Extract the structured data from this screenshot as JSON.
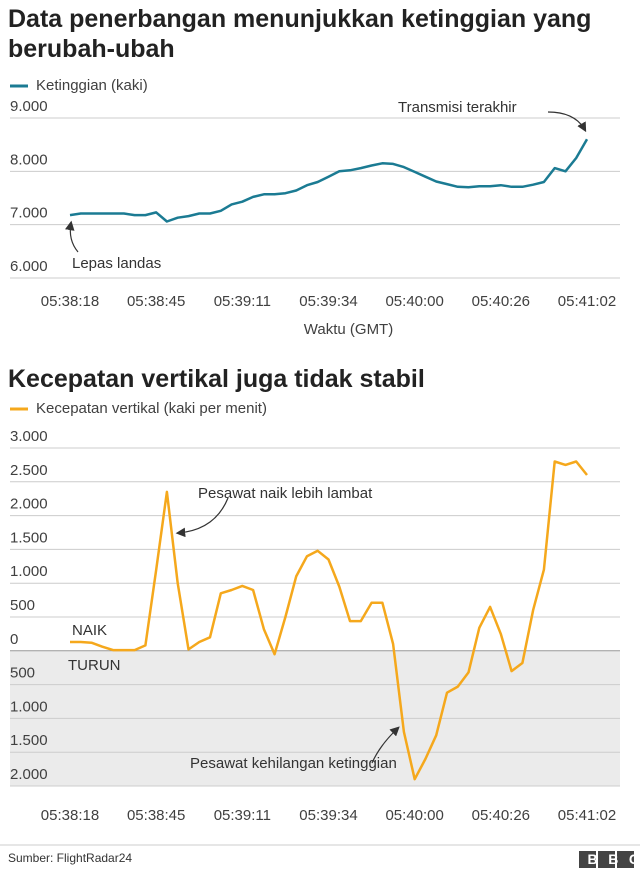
{
  "chart_data": [
    {
      "type": "line",
      "title": "Data penerbangan menunjukkan ketinggian yang berubah-ubah",
      "x_label": "Waktu (GMT)",
      "categories": [
        "05:38:18",
        null,
        null,
        null,
        null,
        null,
        null,
        null,
        "05:38:45",
        null,
        null,
        null,
        null,
        null,
        null,
        null,
        "05:39:11",
        null,
        null,
        null,
        null,
        null,
        null,
        null,
        "05:39:34",
        null,
        null,
        null,
        null,
        null,
        null,
        null,
        "05:40:00",
        null,
        null,
        null,
        null,
        null,
        null,
        null,
        "05:40:26",
        null,
        null,
        null,
        null,
        null,
        null,
        null,
        "05:41:02"
      ],
      "series": [
        {
          "name": "Ketinggian (kaki)",
          "color": "#1b7b93",
          "values": [
            7180,
            7210,
            7210,
            7210,
            7210,
            7210,
            7180,
            7180,
            7230,
            7060,
            7130,
            7160,
            7210,
            7210,
            7260,
            7380,
            7430,
            7520,
            7570,
            7570,
            7590,
            7640,
            7740,
            7800,
            7900,
            8000,
            8020,
            8060,
            8110,
            8150,
            8140,
            8080,
            7990,
            7900,
            7810,
            7760,
            7710,
            7700,
            7720,
            7720,
            7740,
            7710,
            7710,
            7750,
            7800,
            8060,
            8000,
            8250,
            8600
          ]
        }
      ],
      "ylim": [
        6000,
        9000
      ],
      "yticks": [
        {
          "value": 6000,
          "label": "6.000"
        },
        {
          "value": 7000,
          "label": "7.000"
        },
        {
          "value": 8000,
          "label": "8.000"
        },
        {
          "value": 9000,
          "label": "9.000"
        }
      ],
      "grid": true,
      "annotations": [
        "Transmisi terakhir",
        "Lepas landas"
      ]
    },
    {
      "type": "line",
      "title": "Kecepatan vertikal juga tidak stabil",
      "categories": [
        "05:38:18",
        null,
        null,
        null,
        null,
        null,
        null,
        null,
        "05:38:45",
        null,
        null,
        null,
        null,
        null,
        null,
        null,
        "05:39:11",
        null,
        null,
        null,
        null,
        null,
        null,
        null,
        "05:39:34",
        null,
        null,
        null,
        null,
        null,
        null,
        null,
        "05:40:00",
        null,
        null,
        null,
        null,
        null,
        null,
        null,
        "05:40:26",
        null,
        null,
        null,
        null,
        null,
        null,
        null,
        "05:41:02"
      ],
      "series": [
        {
          "name": "Kecepatan vertikal (kaki per menit)",
          "color": "#f5a81c",
          "values": [
            130,
            130,
            120,
            60,
            10,
            10,
            10,
            80,
            1200,
            2350,
            1000,
            20,
            130,
            200,
            850,
            900,
            960,
            900,
            320,
            -50,
            500,
            1100,
            1400,
            1480,
            1350,
            950,
            440,
            440,
            710,
            710,
            100,
            -1200,
            -1900,
            -1600,
            -1250,
            -620,
            -530,
            -320,
            340,
            650,
            250,
            -300,
            -180,
            600,
            1200,
            2800,
            2750,
            2800,
            2600
          ]
        }
      ],
      "ylim": [
        -2000,
        3000
      ],
      "yticks": [
        {
          "value": -2000,
          "label": "2.000"
        },
        {
          "value": -1500,
          "label": "1.500"
        },
        {
          "value": -1000,
          "label": "1.000"
        },
        {
          "value": -500,
          "label": "500"
        },
        0,
        500,
        {
          "value": 1000,
          "label": "1.000"
        },
        {
          "value": 1500,
          "label": "1.500"
        },
        {
          "value": 2000,
          "label": "2.000"
        },
        {
          "value": 2500,
          "label": "2.500"
        },
        {
          "value": 3000,
          "label": "3.000"
        }
      ],
      "grid": true,
      "annotations": [
        "Pesawat naik lebih lambat",
        "Pesawat kehilangan ketinggian",
        "NAIK",
        "TURUN"
      ]
    }
  ],
  "source": "Sumber: FlightRadar24",
  "logo": "BBC"
}
